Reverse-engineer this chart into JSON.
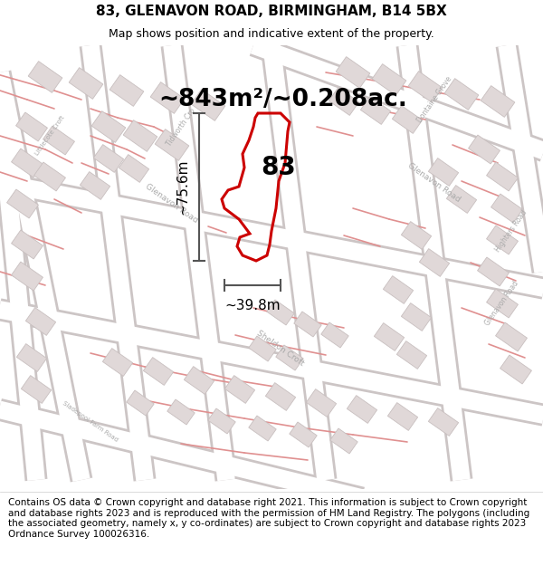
{
  "title_line1": "83, GLENAVON ROAD, BIRMINGHAM, B14 5BX",
  "title_line2": "Map shows position and indicative extent of the property.",
  "area_text": "~843m²/~0.208ac.",
  "label_number": "83",
  "dim_width": "~39.8m",
  "dim_height": "~75.6m",
  "footer_text": "Contains OS data © Crown copyright and database right 2021. This information is subject to Crown copyright and database rights 2023 and is reproduced with the permission of HM Land Registry. The polygons (including the associated geometry, namely x, y co-ordinates) are subject to Crown copyright and database rights 2023 Ordnance Survey 100026316.",
  "map_bg": "#f7f3f3",
  "plot_polygon_color": "#cc0000",
  "title_fontsize": 11,
  "subtitle_fontsize": 9,
  "area_fontsize": 19,
  "label_fontsize": 20,
  "dim_fontsize": 11,
  "footer_fontsize": 7.5,
  "road_label_color": "#aaaaaa",
  "building_fc": "#e0d8d8",
  "building_ec": "#c8bfbf",
  "road_outline_color": "#d0c8c8",
  "red_line_color": "#e09090",
  "dim_line_color": "#555555"
}
